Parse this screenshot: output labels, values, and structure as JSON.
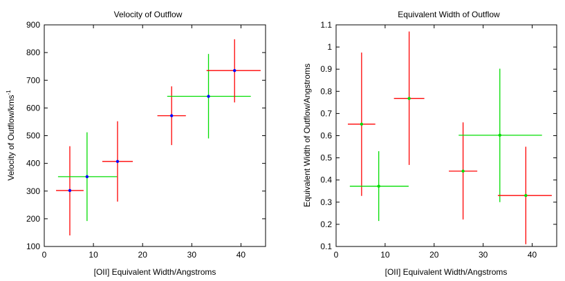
{
  "chart_data": [
    {
      "type": "scatter",
      "title": "Velocity of Outflow",
      "xlabel": "[OII] Equivalent Width/Angstroms",
      "ylabel": "Velocity of Outflow/kms",
      "ylabel_superscript": "-1",
      "xlim": [
        0,
        45
      ],
      "ylim": [
        100,
        900
      ],
      "xticks": [
        0,
        10,
        20,
        30,
        40
      ],
      "yticks": [
        100,
        200,
        300,
        400,
        500,
        600,
        700,
        800,
        900
      ],
      "points": [
        {
          "x": 5.2,
          "y": 302,
          "xerr": [
            2.4,
            8.0
          ],
          "yerr": [
            140,
            462
          ],
          "color": "#ff0000",
          "marker_color": "#0000ff"
        },
        {
          "x": 8.7,
          "y": 352,
          "xerr": [
            2.8,
            14.8
          ],
          "yerr": [
            192,
            512
          ],
          "color": "#00dd00",
          "marker_color": "#0000ff"
        },
        {
          "x": 14.9,
          "y": 407,
          "xerr": [
            11.8,
            18.0
          ],
          "yerr": [
            262,
            552
          ],
          "color": "#ff0000",
          "marker_color": "#0000ff"
        },
        {
          "x": 25.9,
          "y": 572,
          "xerr": [
            23.0,
            28.8
          ],
          "yerr": [
            466,
            678
          ],
          "color": "#ff0000",
          "marker_color": "#0000ff"
        },
        {
          "x": 33.4,
          "y": 642,
          "xerr": [
            25.0,
            42.0
          ],
          "yerr": [
            490,
            795
          ],
          "color": "#00dd00",
          "marker_color": "#0000ff"
        },
        {
          "x": 38.7,
          "y": 735,
          "xerr": [
            33.0,
            44.0
          ],
          "yerr": [
            620,
            848
          ],
          "color": "#ff0000",
          "marker_color": "#0000ff"
        }
      ]
    },
    {
      "type": "scatter",
      "title": "Equivalent Width of Outflow",
      "xlabel": "[OII] Equivalent Width/Angstroms",
      "ylabel": "Equivalent Width of Outflow/Angstroms",
      "xlim": [
        0,
        45
      ],
      "ylim": [
        0.1,
        1.1
      ],
      "xticks": [
        0,
        10,
        20,
        30,
        40
      ],
      "yticks": [
        0.1,
        0.2,
        0.3,
        0.4,
        0.5,
        0.6,
        0.7,
        0.8,
        0.9,
        1,
        1.1
      ],
      "points": [
        {
          "x": 5.2,
          "y": 0.652,
          "xerr": [
            2.4,
            8.0
          ],
          "yerr": [
            0.328,
            0.975
          ],
          "color": "#ff0000",
          "marker_color": "#00dd00"
        },
        {
          "x": 8.7,
          "y": 0.372,
          "xerr": [
            2.8,
            14.8
          ],
          "yerr": [
            0.215,
            0.53
          ],
          "color": "#00dd00",
          "marker_color": "#00dd00"
        },
        {
          "x": 14.9,
          "y": 0.768,
          "xerr": [
            11.8,
            18.0
          ],
          "yerr": [
            0.468,
            1.07
          ],
          "color": "#ff0000",
          "marker_color": "#00dd00"
        },
        {
          "x": 25.9,
          "y": 0.44,
          "xerr": [
            23.0,
            28.8
          ],
          "yerr": [
            0.222,
            0.66
          ],
          "color": "#ff0000",
          "marker_color": "#00dd00"
        },
        {
          "x": 33.4,
          "y": 0.602,
          "xerr": [
            25.0,
            42.0
          ],
          "yerr": [
            0.3,
            0.902
          ],
          "color": "#00dd00",
          "marker_color": "#00dd00"
        },
        {
          "x": 38.7,
          "y": 0.33,
          "xerr": [
            33.0,
            44.0
          ],
          "yerr": [
            0.11,
            0.55
          ],
          "color": "#ff0000",
          "marker_color": "#00dd00"
        }
      ]
    }
  ]
}
